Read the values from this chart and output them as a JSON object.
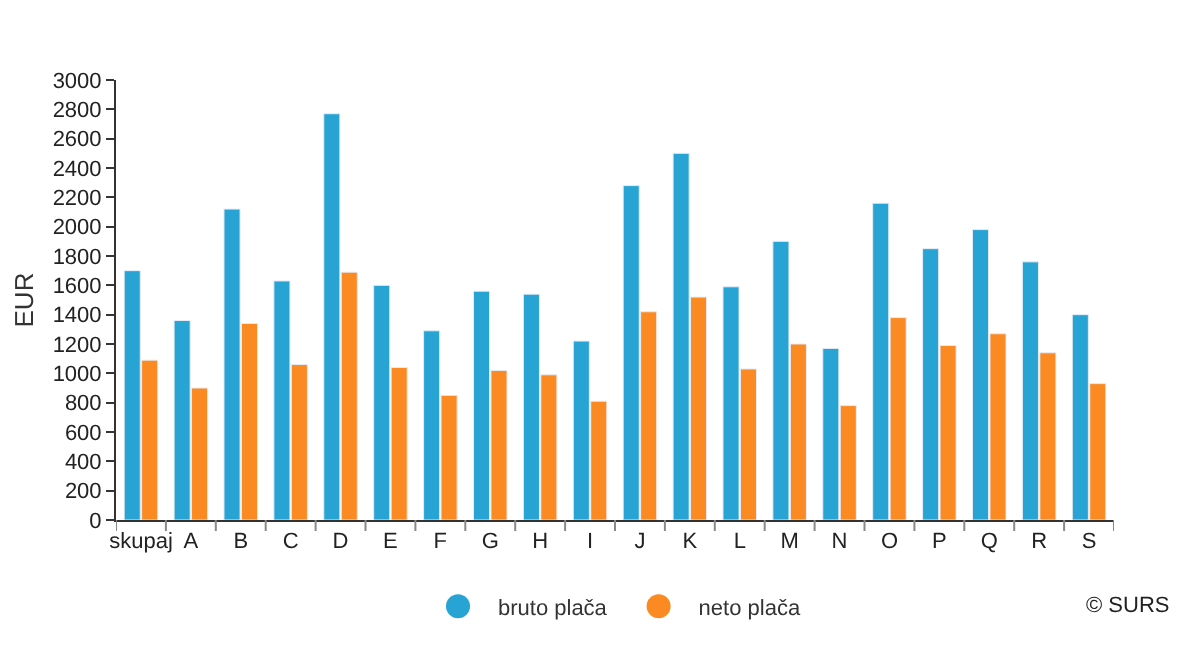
{
  "chart_data": {
    "type": "bar",
    "ylabel": "EUR",
    "categories": [
      "skupaj",
      "A",
      "B",
      "C",
      "D",
      "E",
      "F",
      "G",
      "H",
      "I",
      "J",
      "K",
      "L",
      "M",
      "N",
      "O",
      "P",
      "Q",
      "R",
      "S"
    ],
    "series": [
      {
        "name": "bruto plača",
        "color": "#27a3d4",
        "values": [
          1700,
          1360,
          2120,
          1630,
          2770,
          1600,
          1290,
          1560,
          1540,
          1220,
          2280,
          2500,
          1590,
          1900,
          1170,
          2160,
          1850,
          1980,
          1760,
          1400
        ]
      },
      {
        "name": "neto plača",
        "color": "#fb8a22",
        "values": [
          1090,
          900,
          1340,
          1060,
          1690,
          1040,
          850,
          1020,
          990,
          810,
          1420,
          1520,
          1030,
          1200,
          780,
          1380,
          1190,
          1270,
          1140,
          930
        ]
      }
    ],
    "ylim": [
      0,
      3000
    ],
    "yticks": [
      0,
      200,
      400,
      600,
      800,
      1000,
      1200,
      1400,
      1600,
      1800,
      2000,
      2200,
      2400,
      2600,
      2800,
      3000
    ],
    "legend": "bottom",
    "marker": "circle",
    "annotations": [
      "© SURS"
    ]
  }
}
